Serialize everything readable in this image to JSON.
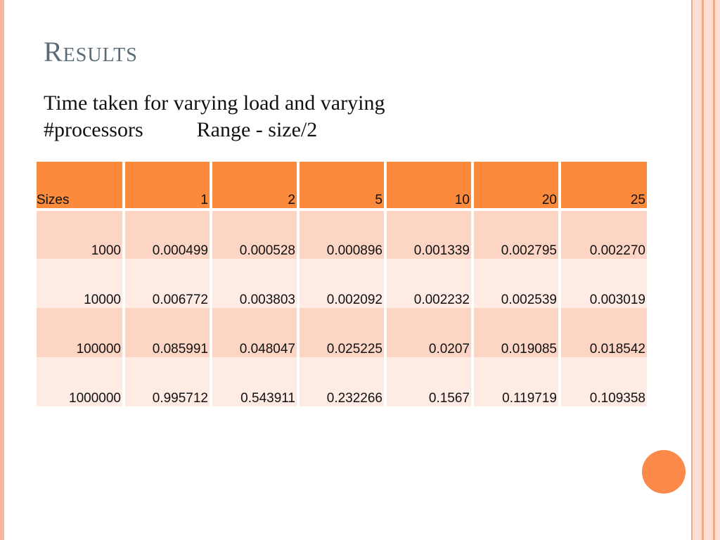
{
  "slide": {
    "title": "Results",
    "subtitle_line1": "Time taken for varying load and varying",
    "subtitle_line2_a": "#processors",
    "subtitle_line2_b": "Range  - size/2"
  },
  "table": {
    "header": [
      "Sizes",
      "1",
      "2",
      "5",
      "10",
      "20",
      "25"
    ],
    "rows": [
      [
        "1000",
        "0.000499",
        "0.000528",
        "0.000896",
        "0.001339",
        "0.002795",
        "0.002270"
      ],
      [
        "10000",
        "0.006772",
        "0.003803",
        "0.002092",
        "0.002232",
        "0.002539",
        "0.003019"
      ],
      [
        "100000",
        "0.085991",
        "0.048047",
        "0.025225",
        "0.0207",
        "0.019085",
        "0.018542"
      ],
      [
        "1000000",
        "0.995712",
        "0.543911",
        "0.232266",
        "0.1567",
        "0.119719",
        "0.109358"
      ]
    ]
  },
  "colors": {
    "header_bg": "#fb8a3c",
    "row_odd_bg": "#fdd5c4",
    "row_even_bg": "#feebe4",
    "title_color": "#5a6b78",
    "accent_circle": "#fb8a4a"
  }
}
